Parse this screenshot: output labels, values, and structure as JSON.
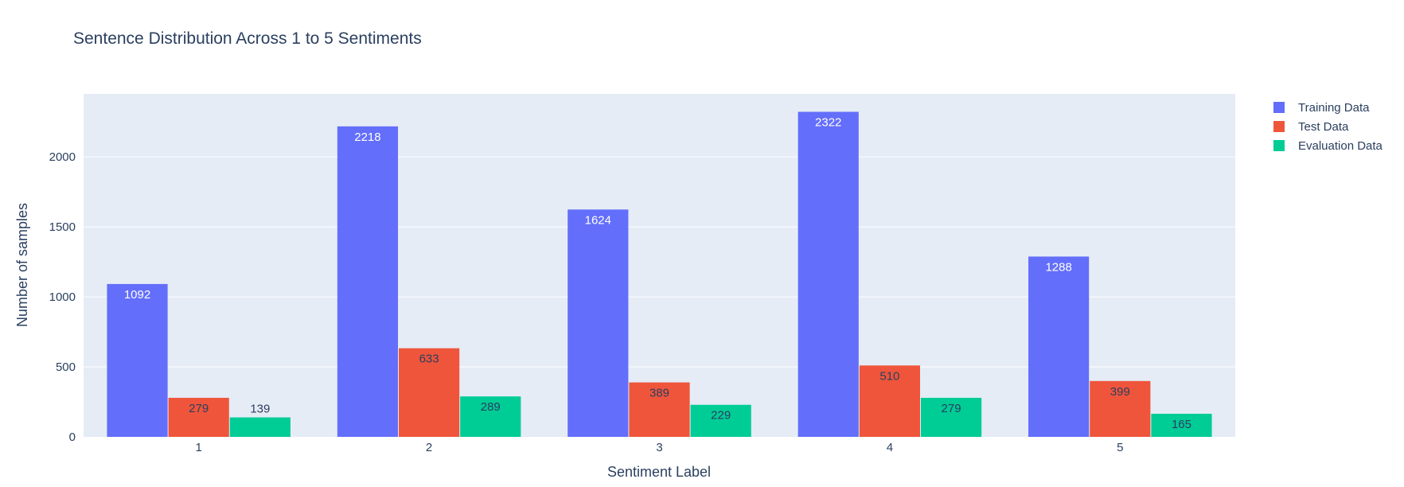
{
  "chart_data": {
    "type": "bar",
    "title": "Sentence Distribution Across 1 to 5 Sentiments",
    "xlabel": "Sentiment Label",
    "ylabel": "Number of samples",
    "categories": [
      "1",
      "2",
      "3",
      "4",
      "5"
    ],
    "ylim": [
      0,
      2450
    ],
    "yticks": [
      0,
      500,
      1000,
      1500,
      2000
    ],
    "grid": true,
    "legend_position": "top-right",
    "plot_background": "#e5ecf6",
    "series": [
      {
        "name": "Training Data",
        "color": "#636efa",
        "label_color": "#ffffff",
        "values": [
          1092,
          2218,
          1624,
          2322,
          1288
        ],
        "labels": [
          "1092",
          "2218",
          "1624",
          "2322",
          "1288"
        ]
      },
      {
        "name": "Test Data",
        "color": "#ef553b",
        "label_color": "#2a3f5f",
        "values": [
          279,
          633,
          389,
          510,
          399
        ],
        "labels": [
          "279",
          "633",
          "389",
          "510",
          "399"
        ]
      },
      {
        "name": "Evaluation Data",
        "color": "#00cc96",
        "label_color": "#2a3f5f",
        "values": [
          139,
          289,
          229,
          279,
          165
        ],
        "labels": [
          "139",
          "289",
          "229",
          "279",
          "165"
        ]
      }
    ]
  }
}
